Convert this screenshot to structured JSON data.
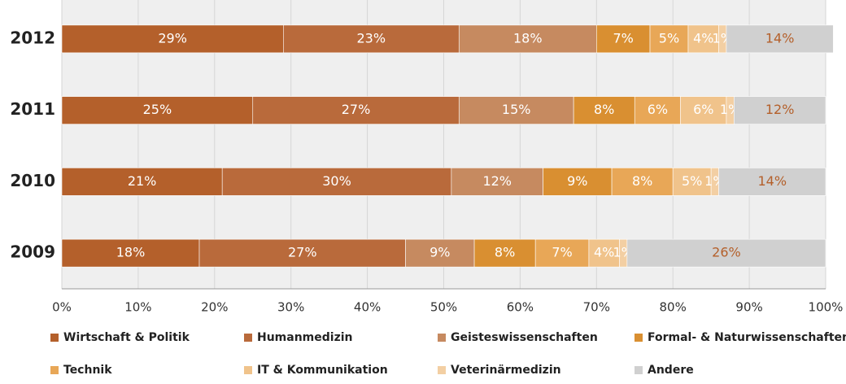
{
  "chart_data": {
    "type": "stacked_bar_horizontal",
    "categories": [
      "2012",
      "2011",
      "2010",
      "2009"
    ],
    "series": [
      {
        "name": "Wirtschaft & Politik",
        "color": "#b4602b",
        "label_color": "#ffffff",
        "values": [
          29,
          25,
          21,
          18
        ],
        "value_labels": [
          "29%",
          "25%",
          "21%",
          "18%"
        ]
      },
      {
        "name": "Humanmedizin",
        "color": "#b96a3b",
        "label_color": "#ffffff",
        "values": [
          23,
          27,
          30,
          27
        ],
        "value_labels": [
          "23%",
          "27%",
          "30%",
          "27%"
        ]
      },
      {
        "name": "Geisteswissenschaften",
        "color": "#c68a60",
        "label_color": "#ffffff",
        "values": [
          18,
          15,
          12,
          9
        ],
        "value_labels": [
          "18%",
          "15%",
          "12%",
          "9%"
        ]
      },
      {
        "name": "Formal- & Naturwissenschaften",
        "color": "#d98f31",
        "label_color": "#ffffff",
        "values": [
          7,
          8,
          9,
          8
        ],
        "value_labels": [
          "7%",
          "8%",
          "9%",
          "8%"
        ]
      },
      {
        "name": "Technik",
        "color": "#e8a757",
        "label_color": "#ffffff",
        "values": [
          5,
          6,
          8,
          7
        ],
        "value_labels": [
          "5%",
          "6%",
          "8%",
          "7%"
        ]
      },
      {
        "name": "IT & Kommunikation",
        "color": "#f0c38b",
        "label_color": "#ffffff",
        "values": [
          4,
          6,
          5,
          4
        ],
        "value_labels": [
          "4%",
          "6%",
          "5%",
          "4%"
        ]
      },
      {
        "name": "Veterinärmedizin",
        "color": "#f3cfa3",
        "label_color": "#ffffff",
        "values": [
          1,
          1,
          1,
          1
        ],
        "value_labels": [
          "1%",
          "1%",
          "1%",
          "1%"
        ]
      },
      {
        "name": "Andere",
        "color": "#d0d0d0",
        "label_color": "#b4602b",
        "values": [
          14,
          12,
          14,
          26
        ],
        "value_labels": [
          "14%",
          "12%",
          "14%",
          "26%"
        ]
      }
    ],
    "xlim": [
      0,
      100
    ],
    "xticks": [
      {
        "value": 0,
        "label": "0%"
      },
      {
        "value": 10,
        "label": "10%"
      },
      {
        "value": 20,
        "label": "20%"
      },
      {
        "value": 30,
        "label": "30%"
      },
      {
        "value": 40,
        "label": "40%"
      },
      {
        "value": 50,
        "label": "50%"
      },
      {
        "value": 60,
        "label": "60%"
      },
      {
        "value": 70,
        "label": "70%"
      },
      {
        "value": 80,
        "label": "80%"
      },
      {
        "value": 90,
        "label": "90%"
      },
      {
        "value": 100,
        "label": "100%"
      }
    ],
    "grid": true,
    "legend": "bottom"
  }
}
